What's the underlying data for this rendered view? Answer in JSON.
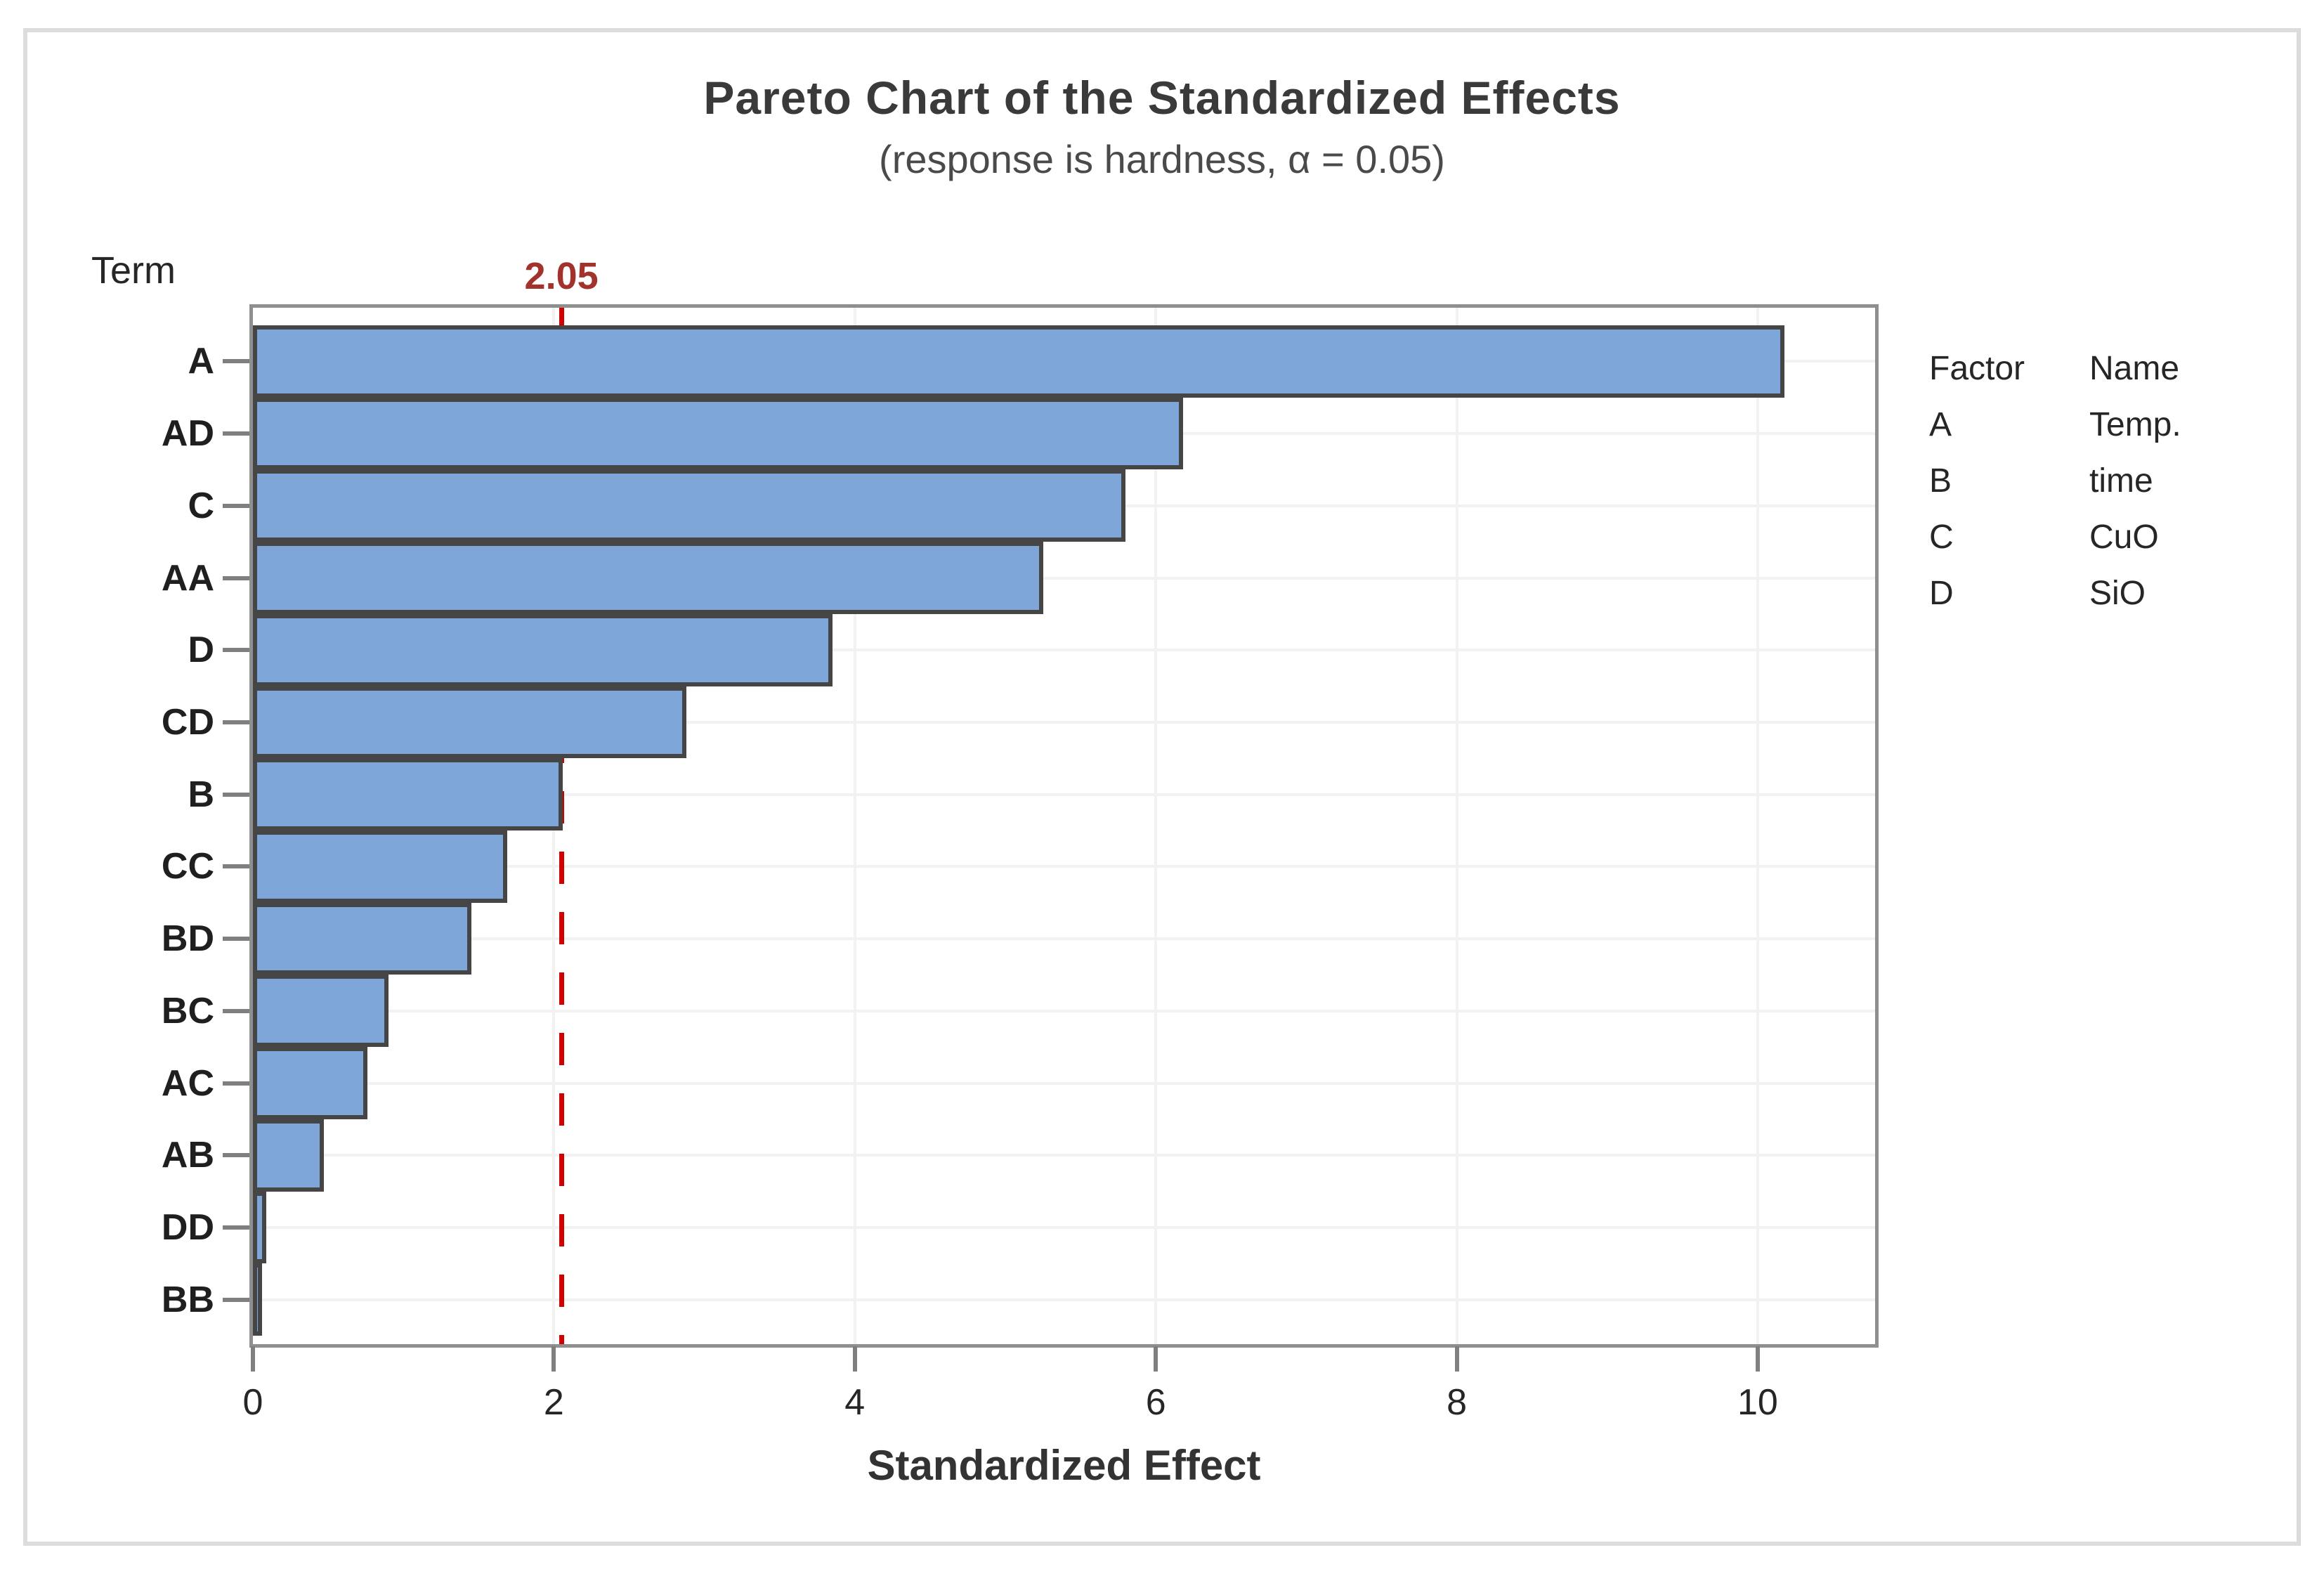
{
  "chart_data": {
    "type": "bar",
    "orientation": "horizontal",
    "title": "Pareto Chart of the Standardized Effects",
    "subtitle": "(response is hardness, α = 0.05)",
    "y_axis_title": "Term",
    "xlabel": "Standardized Effect",
    "categories": [
      "A",
      "AD",
      "C",
      "AA",
      "D",
      "CD",
      "B",
      "CC",
      "BD",
      "BC",
      "AC",
      "AB",
      "DD",
      "BB"
    ],
    "values": [
      10.18,
      6.18,
      5.8,
      5.25,
      3.85,
      2.88,
      2.06,
      1.69,
      1.45,
      0.9,
      0.76,
      0.47,
      0.09,
      0.06
    ],
    "x_ticks": [
      0,
      2,
      4,
      6,
      8,
      10
    ],
    "xlim": [
      0,
      10.78
    ],
    "grid": true,
    "legend_position": "right",
    "reference_line": {
      "value": 2.05,
      "label": "2.05",
      "style": "dashed",
      "line_color": "#d10000",
      "label_color": "#a2332c"
    },
    "colors": {
      "bar_fill": "#7ea6d9",
      "bar_border": "#454545",
      "plot_border": "#8f8f8f",
      "gridline": "#f2f2f2",
      "figure_border": "#dcdcdc"
    },
    "legend": {
      "headers": [
        "Factor",
        "Name"
      ],
      "rows": [
        {
          "factor": "A",
          "name": "Temp."
        },
        {
          "factor": "B",
          "name": "time"
        },
        {
          "factor": "C",
          "name": "CuO"
        },
        {
          "factor": "D",
          "name": "SiO"
        }
      ]
    }
  }
}
